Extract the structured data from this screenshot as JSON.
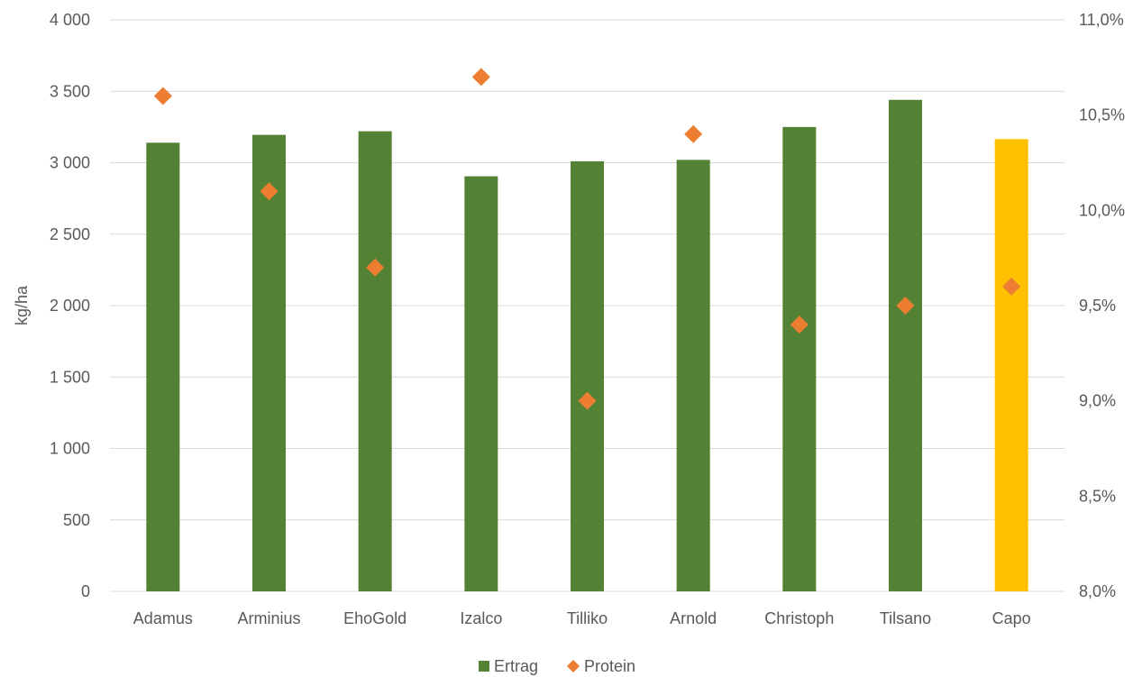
{
  "chart_data": {
    "type": "bar",
    "categories": [
      "Adamus",
      "Arminius",
      "EhoGold",
      "Izalco",
      "Tilliko",
      "Arnold",
      "Christoph",
      "Tilsano",
      "Capo"
    ],
    "series": [
      {
        "name": "Ertrag",
        "type": "bar",
        "axis": "left",
        "values": [
          3140,
          3195,
          3220,
          2905,
          3010,
          3020,
          3250,
          3440,
          3165
        ],
        "colors": [
          "#548235",
          "#548235",
          "#548235",
          "#548235",
          "#548235",
          "#548235",
          "#548235",
          "#548235",
          "#FFC000"
        ]
      },
      {
        "name": "Protein",
        "type": "scatter",
        "marker": "diamond",
        "axis": "right",
        "values": [
          10.6,
          10.1,
          9.7,
          10.7,
          9.0,
          10.4,
          9.4,
          9.5,
          9.6
        ],
        "color": "#ED7D31"
      }
    ],
    "title": "",
    "xlabel": "",
    "ylabel": "kg/ha",
    "y_left": {
      "min": 0,
      "max": 4000,
      "ticks": [
        0,
        500,
        1000,
        1500,
        2000,
        2500,
        3000,
        3500,
        4000
      ],
      "tick_labels": [
        "0",
        "500",
        "1 000",
        "1 500",
        "2 000",
        "2 500",
        "3 000",
        "3 500",
        "4 000"
      ]
    },
    "y_right": {
      "min": 8.0,
      "max": 11.0,
      "ticks": [
        8.0,
        8.5,
        9.0,
        9.5,
        10.0,
        10.5,
        11.0
      ],
      "tick_labels": [
        "8,0%",
        "8,5%",
        "9,0%",
        "9,5%",
        "10,0%",
        "10,5%",
        "11,0%"
      ]
    },
    "grid": true,
    "gridline_color": "#D9D9D9",
    "legend": {
      "position": "bottom",
      "entries": [
        {
          "name": "Ertrag",
          "marker": "square",
          "color": "#548235"
        },
        {
          "name": "Protein",
          "marker": "diamond",
          "color": "#ED7D31"
        }
      ]
    }
  }
}
